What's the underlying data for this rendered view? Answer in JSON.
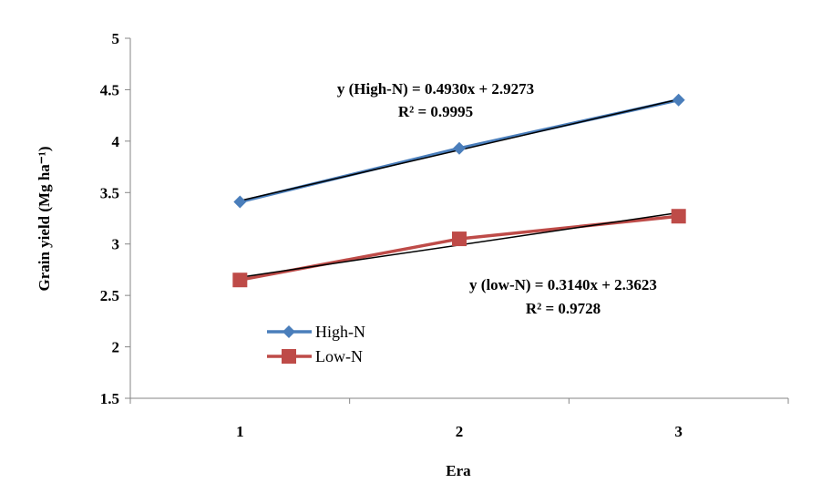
{
  "chart_data": {
    "type": "line",
    "title": "",
    "xlabel": "Era",
    "ylabel": "Grain yield (Mg ha⁻¹)",
    "x": [
      1,
      2,
      3
    ],
    "x_ticks": [
      "1",
      "2",
      "3"
    ],
    "xlim": [
      0.5,
      3.5
    ],
    "ylim": [
      1.5,
      5
    ],
    "y_ticks": [
      "1.5",
      "2",
      "2.5",
      "3",
      "3.5",
      "4",
      "4.5",
      "5"
    ],
    "grid": false,
    "legend_position": "lower-left",
    "series": [
      {
        "name": "High-N",
        "values": [
          3.41,
          3.93,
          4.4
        ],
        "color": "#4A7EBB",
        "marker": "diamond",
        "trend": {
          "slope": 0.493,
          "intercept": 2.9273
        }
      },
      {
        "name": "Low-N",
        "values": [
          2.65,
          3.05,
          3.27
        ],
        "color": "#BE4B48",
        "marker": "square",
        "trend": {
          "slope": 0.314,
          "intercept": 2.3623
        }
      }
    ],
    "annotations": {
      "high_eq": "y (High-N) = 0.4930x + 2.9273",
      "high_r2": "R² = 0.9995",
      "low_eq": "y (low-N) = 0.3140x + 2.3623",
      "low_r2": "R² = 0.9728"
    }
  }
}
